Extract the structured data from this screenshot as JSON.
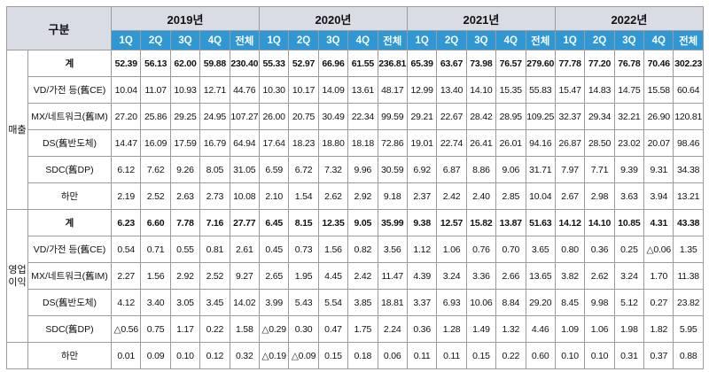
{
  "header": {
    "label": "구분",
    "years": [
      "2019년",
      "2020년",
      "2021년",
      "2022년"
    ],
    "quarters": [
      "1Q",
      "2Q",
      "3Q",
      "4Q",
      "전체"
    ]
  },
  "groups": [
    {
      "name": "매출",
      "rows": [
        {
          "label": "계",
          "bold": true,
          "values": [
            "52.39",
            "56.13",
            "62.00",
            "59.88",
            "230.40",
            "55.33",
            "52.97",
            "66.96",
            "61.55",
            "236.81",
            "65.39",
            "63.67",
            "73.98",
            "76.57",
            "279.60",
            "77.78",
            "77.20",
            "76.78",
            "70.46",
            "302.23"
          ]
        },
        {
          "label": "VD/가전 등(舊CE)",
          "bold": false,
          "values": [
            "10.04",
            "11.07",
            "10.93",
            "12.71",
            "44.76",
            "10.30",
            "10.17",
            "14.09",
            "13.61",
            "48.17",
            "12.99",
            "13.40",
            "14.10",
            "15.35",
            "55.83",
            "15.47",
            "14.83",
            "14.75",
            "15.58",
            "60.64"
          ]
        },
        {
          "label": "MX/네트워크(舊IM)",
          "bold": false,
          "values": [
            "27.20",
            "25.86",
            "29.25",
            "24.95",
            "107.27",
            "26.00",
            "20.75",
            "30.49",
            "22.34",
            "99.59",
            "29.21",
            "22.67",
            "28.42",
            "28.95",
            "109.25",
            "32.37",
            "29.34",
            "32.21",
            "26.90",
            "120.81"
          ]
        },
        {
          "label": "DS(舊반도체)",
          "bold": false,
          "values": [
            "14.47",
            "16.09",
            "17.59",
            "16.79",
            "64.94",
            "17.64",
            "18.23",
            "18.80",
            "18.18",
            "72.86",
            "19.01",
            "22.74",
            "26.41",
            "26.01",
            "94.16",
            "26.87",
            "28.50",
            "23.02",
            "20.07",
            "98.46"
          ]
        },
        {
          "label": "SDC(舊DP)",
          "bold": false,
          "values": [
            "6.12",
            "7.62",
            "9.26",
            "8.05",
            "31.05",
            "6.59",
            "6.72",
            "7.32",
            "9.96",
            "30.59",
            "6.92",
            "6.87",
            "8.86",
            "9.06",
            "31.71",
            "7.97",
            "7.71",
            "9.39",
            "9.31",
            "34.38"
          ]
        },
        {
          "label": "하만",
          "bold": false,
          "values": [
            "2.19",
            "2.52",
            "2.63",
            "2.73",
            "10.08",
            "2.10",
            "1.54",
            "2.62",
            "2.92",
            "9.18",
            "2.37",
            "2.42",
            "2.40",
            "2.85",
            "10.04",
            "2.67",
            "2.98",
            "3.63",
            "3.94",
            "13.21"
          ]
        }
      ]
    },
    {
      "name": "영업\n이익",
      "rows": [
        {
          "label": "계",
          "bold": true,
          "values": [
            "6.23",
            "6.60",
            "7.78",
            "7.16",
            "27.77",
            "6.45",
            "8.15",
            "12.35",
            "9.05",
            "35.99",
            "9.38",
            "12.57",
            "15.82",
            "13.87",
            "51.63",
            "14.12",
            "14.10",
            "10.85",
            "4.31",
            "43.38"
          ]
        },
        {
          "label": "VD/가전 등(舊CE)",
          "bold": false,
          "values": [
            "0.54",
            "0.71",
            "0.55",
            "0.81",
            "2.61",
            "0.45",
            "0.73",
            "1.56",
            "0.82",
            "3.56",
            "1.12",
            "1.06",
            "0.76",
            "0.70",
            "3.65",
            "0.80",
            "0.36",
            "0.25",
            "△0.06",
            "1.35"
          ]
        },
        {
          "label": "MX/네트워크(舊IM)",
          "bold": false,
          "values": [
            "2.27",
            "1.56",
            "2.92",
            "2.52",
            "9.27",
            "2.65",
            "1.95",
            "4.45",
            "2.42",
            "11.47",
            "4.39",
            "3.24",
            "3.36",
            "2.66",
            "13.65",
            "3.82",
            "2.62",
            "3.24",
            "1.70",
            "11.38"
          ]
        },
        {
          "label": "DS(舊반도체)",
          "bold": false,
          "values": [
            "4.12",
            "3.40",
            "3.05",
            "3.45",
            "14.02",
            "3.99",
            "5.43",
            "5.54",
            "3.85",
            "18.81",
            "3.37",
            "6.93",
            "10.06",
            "8.84",
            "29.20",
            "8.45",
            "9.98",
            "5.12",
            "0.27",
            "23.82"
          ]
        },
        {
          "label": "SDC(舊DP)",
          "bold": false,
          "values": [
            "△0.56",
            "0.75",
            "1.17",
            "0.22",
            "1.58",
            "△0.29",
            "0.30",
            "0.47",
            "1.75",
            "2.24",
            "0.36",
            "1.28",
            "1.49",
            "1.32",
            "4.46",
            "1.09",
            "1.06",
            "1.98",
            "1.82",
            "5.95"
          ]
        }
      ]
    },
    {
      "name": "",
      "rows": [
        {
          "label": "하만",
          "bold": false,
          "values": [
            "0.01",
            "0.09",
            "0.10",
            "0.12",
            "0.32",
            "△0.19",
            "△0.09",
            "0.15",
            "0.18",
            "0.06",
            "0.11",
            "0.11",
            "0.15",
            "0.22",
            "0.60",
            "0.10",
            "0.10",
            "0.31",
            "0.37",
            "0.88"
          ]
        }
      ]
    }
  ]
}
